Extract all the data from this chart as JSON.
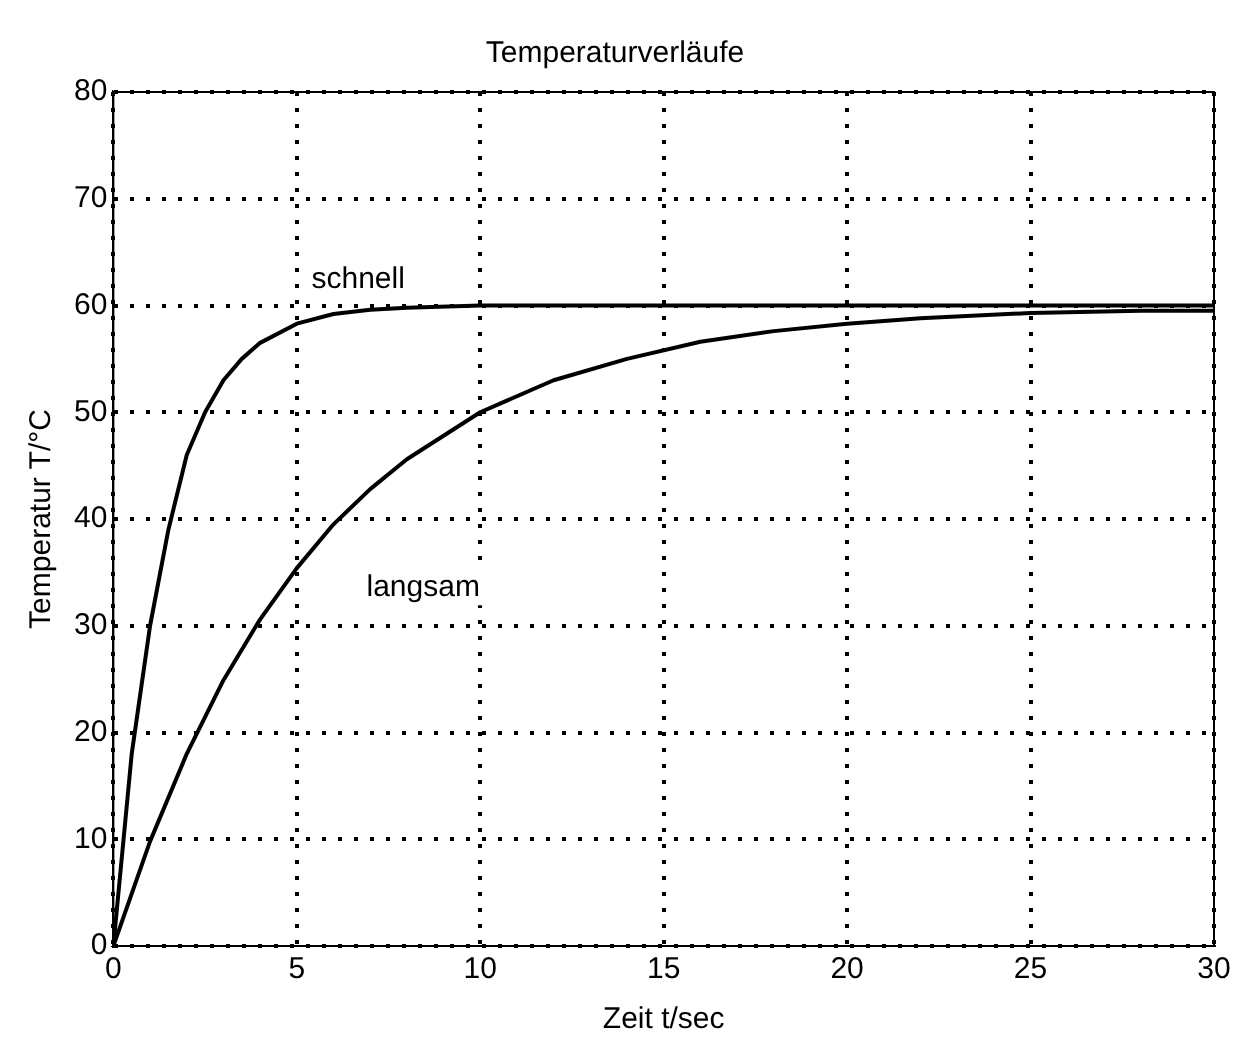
{
  "chart_data": {
    "type": "line",
    "title": "Temperaturverläufe",
    "xlabel": "Zeit t/sec",
    "ylabel": "Temperatur T/°C",
    "xlim": [
      0,
      30
    ],
    "xticks": [
      0,
      5,
      10,
      15,
      20,
      25,
      30
    ],
    "ylim": [
      0,
      80
    ],
    "yticks": [
      0,
      10,
      20,
      30,
      40,
      50,
      60,
      70,
      80
    ],
    "grid": true,
    "legend": false,
    "marker": "none",
    "line_style": "solid",
    "annotations": [
      "schnell",
      "langsam"
    ],
    "series": [
      {
        "color": "#000000",
        "x": [
          0,
          0.5,
          1,
          1.5,
          2,
          2.5,
          3,
          3.5,
          4,
          5,
          6,
          7,
          8,
          10,
          15,
          20,
          25,
          30
        ],
        "values": [
          0,
          18,
          30,
          39,
          46,
          50,
          53,
          55,
          56.5,
          58.3,
          59.2,
          59.6,
          59.8,
          60,
          60,
          60,
          60,
          60
        ]
      },
      {
        "color": "#000000",
        "x": [
          0,
          1,
          2,
          3,
          4,
          5,
          6,
          7,
          8,
          10,
          12,
          14,
          16,
          18,
          20,
          22,
          25,
          28,
          30
        ],
        "values": [
          0,
          9.8,
          18,
          24.9,
          30.6,
          35.4,
          39.5,
          42.8,
          45.6,
          50,
          53,
          55,
          56.6,
          57.6,
          58.3,
          58.8,
          59.3,
          59.5,
          59.5
        ]
      }
    ]
  }
}
